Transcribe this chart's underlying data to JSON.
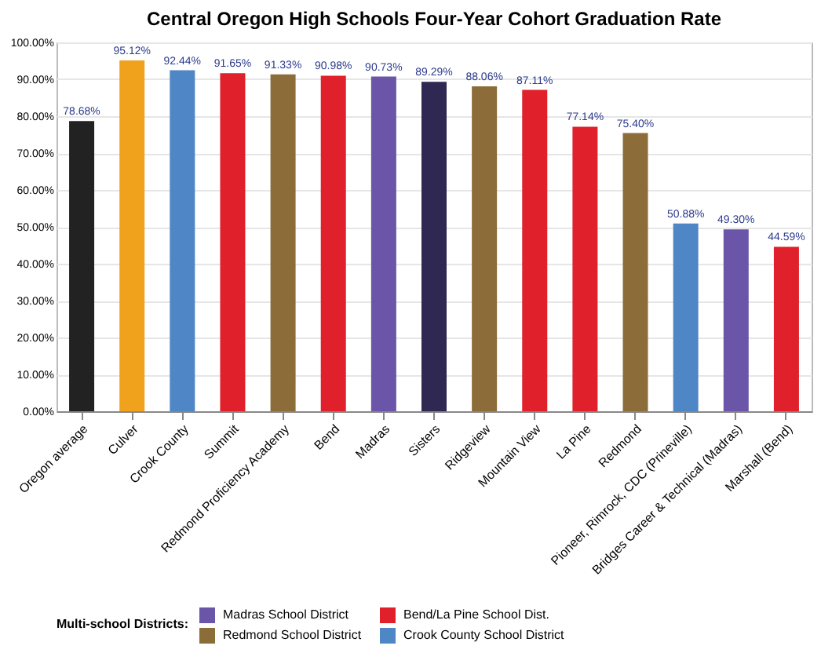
{
  "chart_data": {
    "type": "bar",
    "title": "Central Oregon High Schools Four-Year Cohort Graduation Rate",
    "categories": [
      "Oregon average",
      "Culver",
      "Crook County",
      "Summit",
      "Redmond Proficiency Academy",
      "Bend",
      "Madras",
      "Sisters",
      "Ridgeview",
      "Mountain View",
      "La Pine",
      "Redmond",
      "Pioneer, Rimrock, CDC (Prineville)",
      "Bridges Career & Technical (Madras)",
      "Marshall (Bend)"
    ],
    "stacked": true,
    "series": [
      {
        "color": "#222222",
        "values": [
          78.68,
          null,
          null,
          null,
          null,
          null,
          null,
          null,
          null,
          null,
          null,
          null,
          null,
          null,
          null
        ],
        "value_labels": [
          "78.68%",
          null,
          null,
          null,
          null,
          null,
          null,
          null,
          null,
          null,
          null,
          null,
          null,
          null,
          null
        ]
      },
      {
        "color": "#f0a21c",
        "values": [
          null,
          95.12,
          null,
          null,
          null,
          null,
          null,
          null,
          null,
          null,
          null,
          null,
          null,
          null,
          null
        ],
        "value_labels": [
          null,
          "95.12%",
          null,
          null,
          null,
          null,
          null,
          null,
          null,
          null,
          null,
          null,
          null,
          null,
          null
        ]
      },
      {
        "name": "Madras School District",
        "color": "#6a55a8",
        "values": [
          null,
          null,
          null,
          null,
          null,
          null,
          90.73,
          null,
          null,
          null,
          null,
          null,
          null,
          49.3,
          null
        ],
        "value_labels": [
          null,
          null,
          null,
          null,
          null,
          null,
          "90.73%",
          null,
          null,
          null,
          null,
          null,
          null,
          "49.30%",
          null
        ]
      },
      {
        "name": "Bend/La Pine School Dist.",
        "color": "#e0202a",
        "values": [
          null,
          null,
          null,
          91.65,
          null,
          90.98,
          null,
          null,
          null,
          87.11,
          77.14,
          null,
          null,
          null,
          44.59
        ],
        "value_labels": [
          null,
          null,
          null,
          "91.65%",
          null,
          "90.98%",
          null,
          null,
          null,
          "87.11%",
          "77.14%",
          null,
          null,
          null,
          "44.59%"
        ]
      },
      {
        "name": "Redmond School District",
        "color": "#8c6d3a",
        "values": [
          null,
          null,
          null,
          null,
          91.33,
          null,
          null,
          null,
          88.06,
          null,
          null,
          75.4,
          null,
          null,
          null
        ],
        "value_labels": [
          null,
          null,
          null,
          null,
          "91.33%",
          null,
          null,
          null,
          "88.06%",
          null,
          null,
          "75.40%",
          null,
          null,
          null
        ]
      },
      {
        "name": "Crook County School District",
        "color": "#4f86c6",
        "values": [
          null,
          null,
          92.44,
          null,
          null,
          null,
          null,
          null,
          null,
          null,
          null,
          null,
          50.88,
          null,
          null
        ],
        "value_labels": [
          null,
          null,
          "92.44%",
          null,
          null,
          null,
          null,
          null,
          null,
          null,
          null,
          null,
          "50.88%",
          null,
          null
        ]
      },
      {
        "color": "#2e2852",
        "values": [
          null,
          null,
          null,
          null,
          null,
          null,
          null,
          89.29,
          null,
          null,
          null,
          null,
          null,
          null,
          null
        ],
        "value_labels": [
          null,
          null,
          null,
          null,
          null,
          null,
          null,
          "89.29%",
          null,
          null,
          null,
          null,
          null,
          null,
          null
        ]
      }
    ],
    "ylim": [
      0,
      100
    ],
    "yticks": [
      {
        "value": 0,
        "label": "0.00%"
      },
      {
        "value": 10,
        "label": "10.00%"
      },
      {
        "value": 20,
        "label": "20.00%"
      },
      {
        "value": 30,
        "label": "30.00%"
      },
      {
        "value": 40,
        "label": "40.00%"
      },
      {
        "value": 50,
        "label": "50.00%"
      },
      {
        "value": 60,
        "label": "60.00%"
      },
      {
        "value": 70,
        "label": "70.00%"
      },
      {
        "value": 80,
        "label": "80.00%"
      },
      {
        "value": 90,
        "label": "90.00%"
      },
      {
        "value": 100,
        "label": "100.00%"
      }
    ],
    "grid": "y",
    "legend": "bottom",
    "legend_title": "Multi-school Districts:"
  }
}
